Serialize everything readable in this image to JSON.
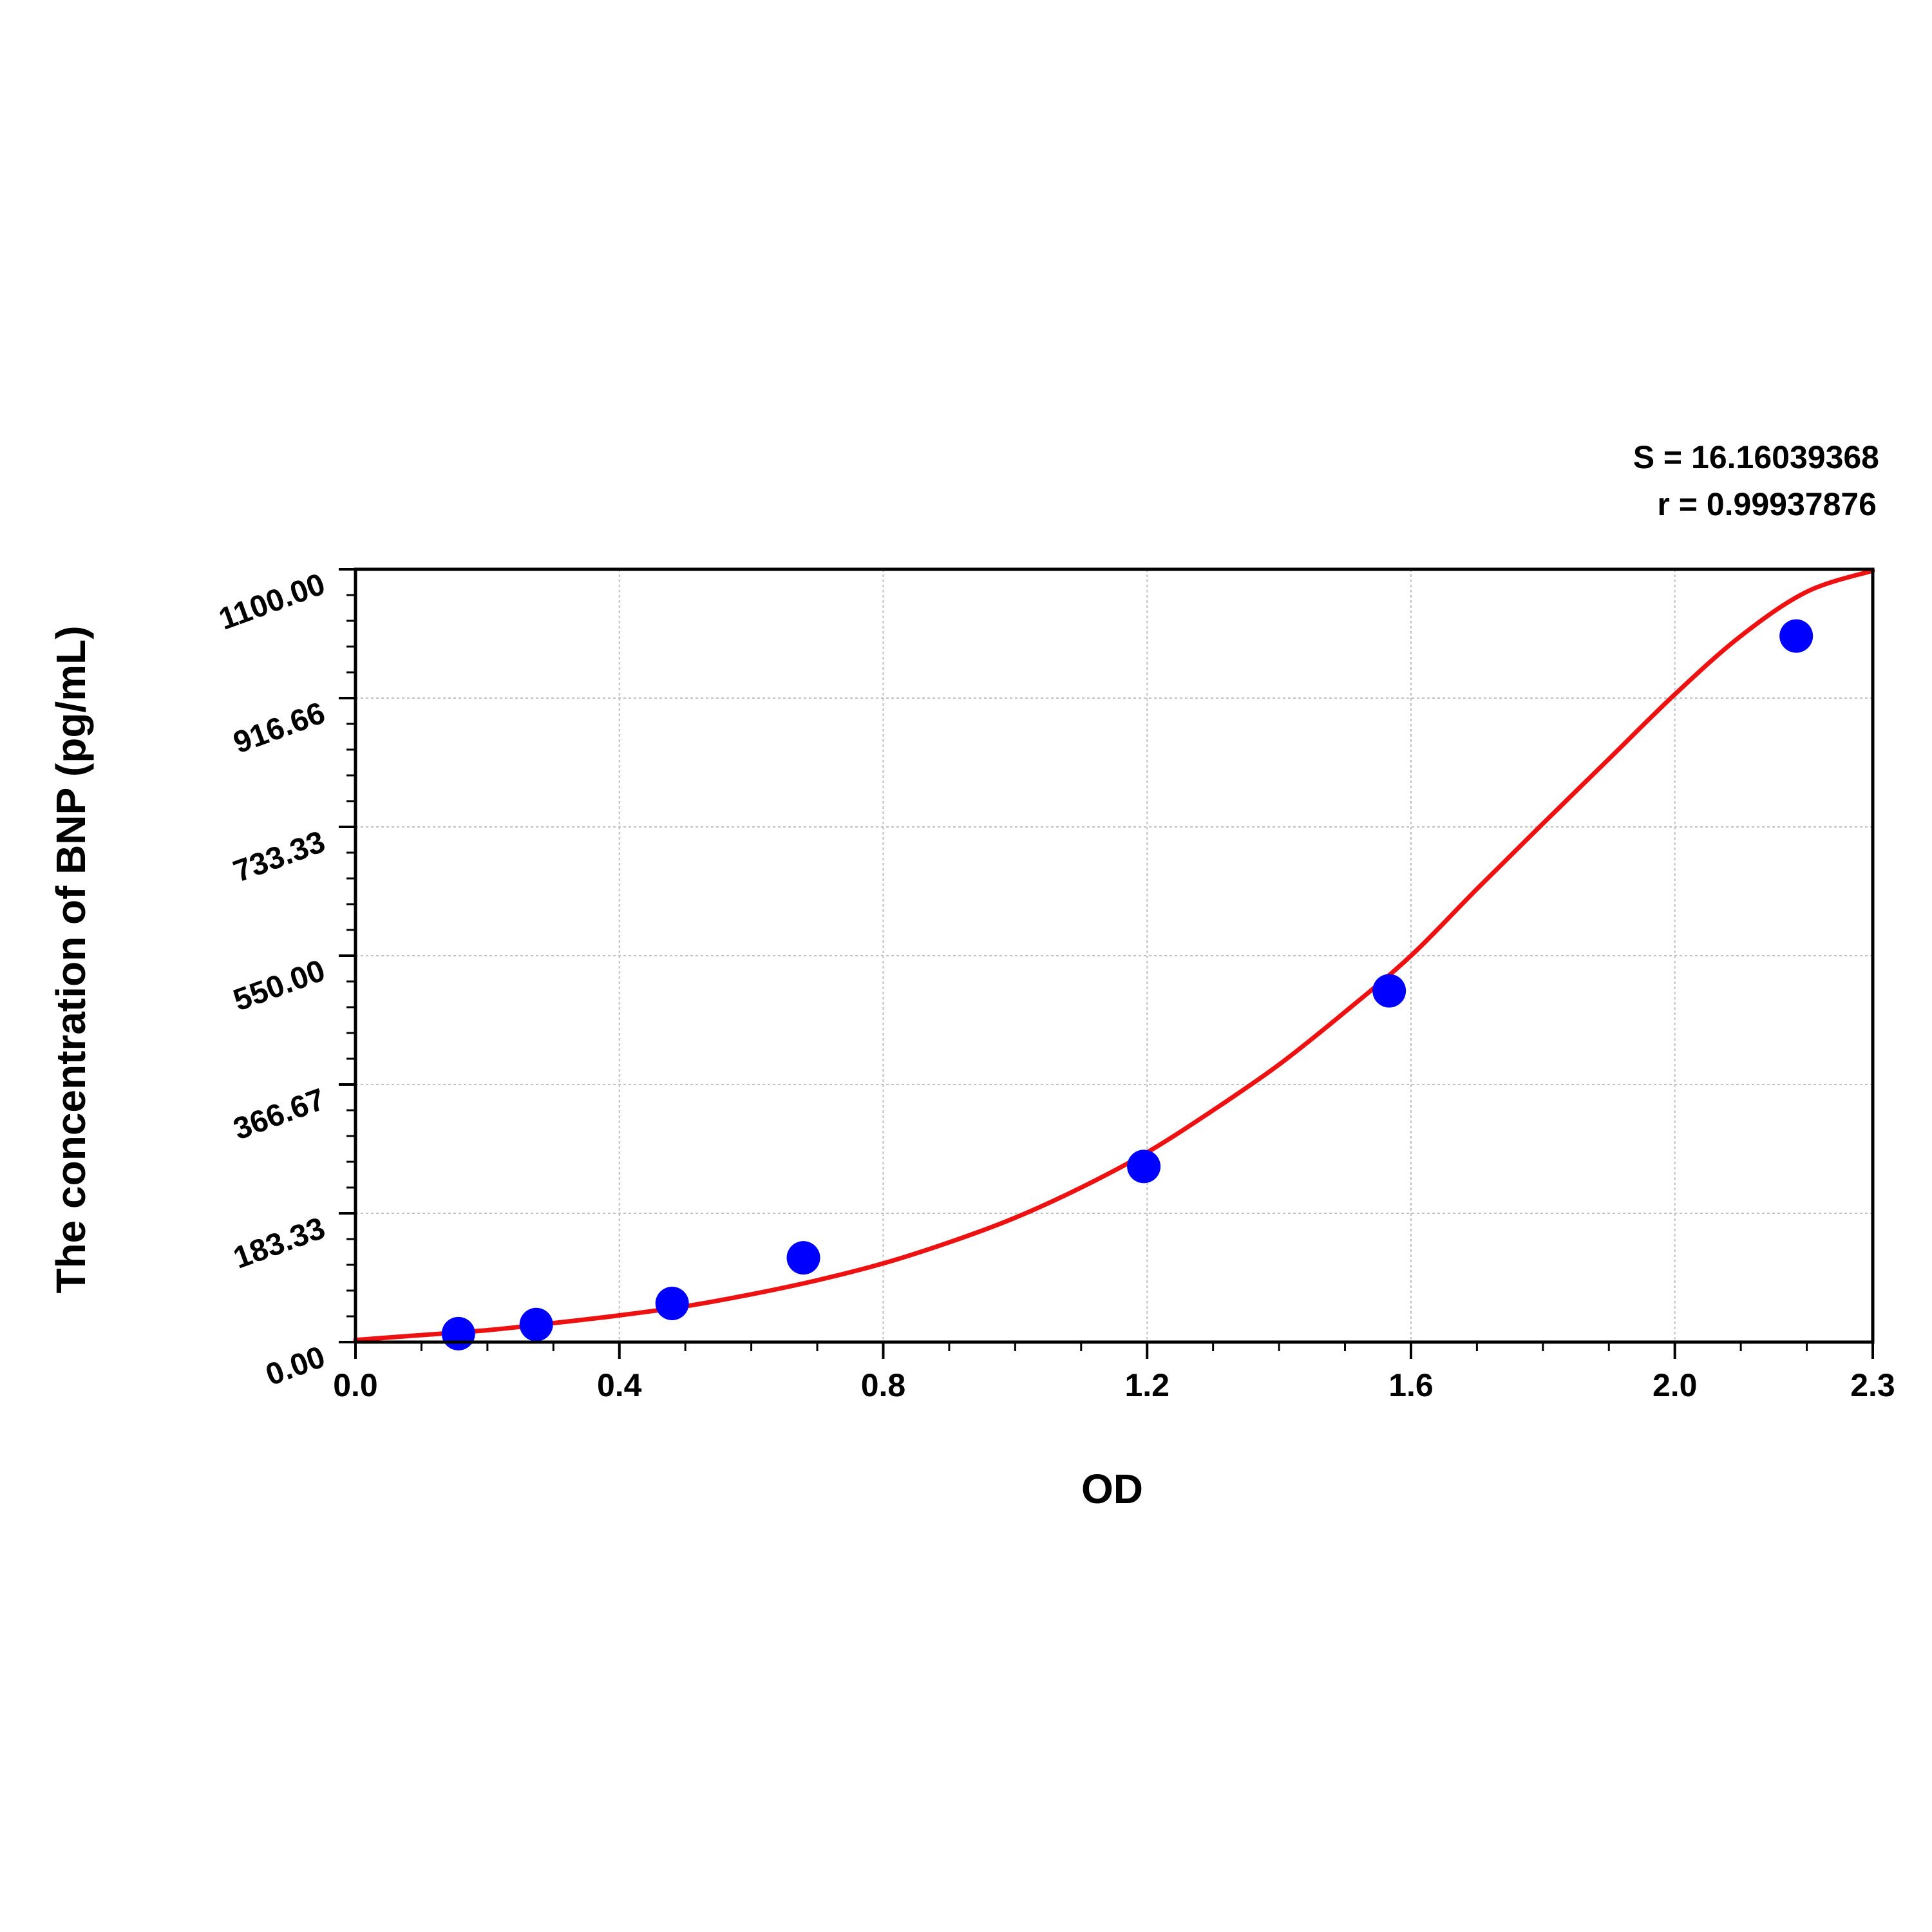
{
  "chart_data": {
    "type": "scatter",
    "title": "",
    "xlabel": "OD",
    "ylabel": "The concentration of BNP (pg/mL)",
    "xlim": [
      0,
      2.3
    ],
    "ylim": [
      0,
      1100
    ],
    "x_ticks": [
      0.0,
      0.4,
      0.8,
      1.2,
      1.6,
      2.0,
      2.3
    ],
    "x_tick_labels": [
      "0.0",
      "0.4",
      "0.8",
      "1.2",
      "1.6",
      "2.0",
      "2.3"
    ],
    "y_ticks": [
      0,
      183.33,
      366.67,
      550,
      733.33,
      916.66,
      1100
    ],
    "y_tick_labels": [
      "0.00",
      "183.33",
      "366.67",
      "550.00",
      "733.33",
      "916.66",
      "1100.00"
    ],
    "grid": true,
    "stats": {
      "s_text": "S = 16.16039368",
      "r_text": "r = 0.99937876"
    },
    "points": {
      "x": [
        0.156,
        0.274,
        0.48,
        0.679,
        1.195,
        1.567,
        2.184
      ],
      "y": [
        12,
        25,
        55,
        120,
        250,
        500,
        1005
      ]
    },
    "fit_curve": {
      "x": [
        0.0,
        0.1,
        0.2,
        0.3,
        0.4,
        0.5,
        0.6,
        0.7,
        0.8,
        0.9,
        1.0,
        1.1,
        1.2,
        1.3,
        1.4,
        1.5,
        1.6,
        1.7,
        1.8,
        1.9,
        2.0,
        2.1,
        2.2,
        2.3
      ],
      "y": [
        3,
        10,
        17,
        27,
        38,
        51,
        68,
        88,
        112,
        142,
        177,
        220,
        270,
        330,
        395,
        470,
        550,
        645,
        738,
        830,
        922,
        1005,
        1068,
        1098
      ]
    },
    "colors": {
      "points": "#0000ff",
      "curve": "#ee1111",
      "grid": "#c0c0c0",
      "axis": "#000000"
    }
  }
}
